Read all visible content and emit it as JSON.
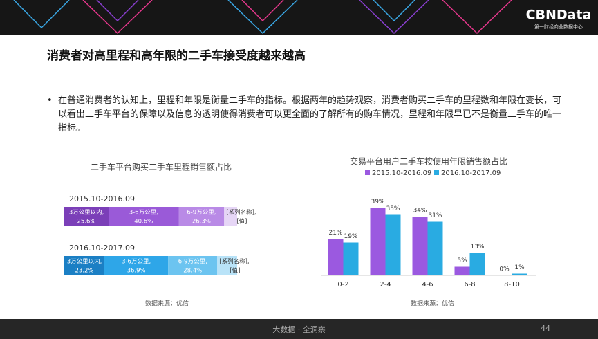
{
  "header": {
    "logo": "CBNData",
    "logo_subtitle": "第一财经商业数据中心"
  },
  "title": "消费者对高里程和高年限的二手车接受度越来越高",
  "bullet": "在普通消费者的认知上，里程和年限是衡量二手车的指标。根据两年的趋势观察，消费者购买二手车的里程数和年限在变长，可以看出二手车平台的保障以及信息的透明使得消费者可以更全面的了解所有的购车情况，里程和年限早已不是衡量二手车的唯一指标。",
  "chart_data": [
    {
      "type": "stacked-hbar",
      "title": "二手车平台购买二手车里程销售额占比",
      "source": "数据来源：优信",
      "categories": [
        "2015.10-2016.09",
        "2016.10-2017.09"
      ],
      "series": [
        {
          "name": "3万公里以内,",
          "colors": [
            "#7b3fb8",
            "#1b7fc4"
          ],
          "values": [
            25.6,
            23.2
          ],
          "value_labels": [
            "25.6%",
            "23.2%"
          ]
        },
        {
          "name": "3-6万公里,",
          "colors": [
            "#9a5ad8",
            "#2ea6e8"
          ],
          "values": [
            40.6,
            36.9
          ],
          "value_labels": [
            "40.6%",
            "36.9%"
          ]
        },
        {
          "name": "6-9万公里,",
          "colors": [
            "#b98ae6",
            "#6cc4f0"
          ],
          "values": [
            26.3,
            28.4
          ],
          "value_labels": [
            "26.3%",
            "28.4%"
          ]
        },
        {
          "name": "[系列名称],",
          "colors": [
            "#e6d6f6",
            "#b9e3f8"
          ],
          "values": [
            7.5,
            11.5
          ],
          "value_labels": [
            "[值]",
            "[值]"
          ]
        }
      ]
    },
    {
      "type": "grouped-bar",
      "title": "交易平台用户二手车按使用年限销售额占比",
      "source": "数据来源：优信",
      "categories": [
        "0-2",
        "2-4",
        "4-6",
        "6-8",
        "8-10"
      ],
      "series": [
        {
          "name": "2015.10-2016.09",
          "color": "#9b59e0",
          "values": [
            21,
            39,
            34,
            5,
            0
          ],
          "value_labels": [
            "21%",
            "39%",
            "34%",
            "5%",
            "0%"
          ]
        },
        {
          "name": "2016.10-2017.09",
          "color": "#29abe2",
          "values": [
            19,
            35,
            31,
            13,
            1
          ],
          "value_labels": [
            "19%",
            "35%",
            "31%",
            "13%",
            "1%"
          ]
        }
      ]
    }
  ],
  "footer": {
    "text": "大数据 · 全洞察",
    "page": "44"
  }
}
